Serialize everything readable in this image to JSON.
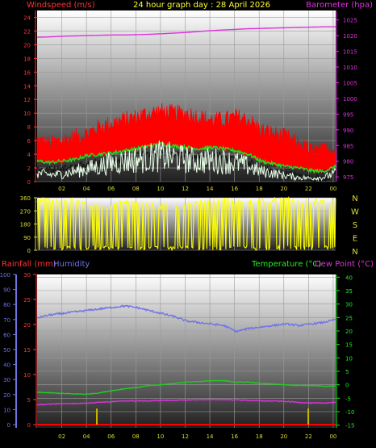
{
  "header": {
    "left_title": "Windspeed (m/s)",
    "center_title": "24 hour graph day : 28 April 2026",
    "right_title": "Barometer (hpa)"
  },
  "panel2": {
    "compass": [
      "N",
      "W",
      "S",
      "E",
      "N"
    ]
  },
  "panel3": {
    "rain_title": "Rainfall (mm)",
    "humidity_title": "Humidity",
    "temp_title": "Temperature (°C)",
    "dew_title": "Dew Point (°C)"
  },
  "colors": {
    "wind_avg": "#ff0000",
    "wind_gust_green": "#22dd22",
    "wind_white": "#e8ffe8",
    "barometer": "#dd33dd",
    "direction": "#ffff00",
    "humidity": "#6e73e6",
    "temperature": "#22cc22",
    "dewpoint": "#dd33dd",
    "rain": "#ff0000",
    "rain_bar": "#c8b400",
    "axis_left": "#ff3333",
    "axis_right_baro": "#dd33dd",
    "axis_temp": "#22ee22",
    "axis_hum": "#6e73e6"
  },
  "chart_data": [
    {
      "type": "line",
      "name": "windspeed-barometer",
      "x_ticks": [
        "02",
        "04",
        "06",
        "08",
        "10",
        "12",
        "14",
        "16",
        "18",
        "20",
        "22",
        "00"
      ],
      "y_left_ticks": [
        "0",
        "2",
        "4",
        "6",
        "8",
        "10",
        "12",
        "14",
        "16",
        "18",
        "20",
        "22",
        "24"
      ],
      "y_left_range": [
        0,
        25
      ],
      "y_right_ticks": [
        "975",
        "980",
        "985",
        "990",
        "995",
        "1000",
        "1005",
        "1010",
        "1015",
        "1020",
        "1025"
      ],
      "y_right_range": [
        973.5,
        1028
      ],
      "series": [
        {
          "key": "barometer",
          "axis": "right",
          "values": [
            1019.5,
            1019.6,
            1019.8,
            1019.9,
            1020.0,
            1020.1,
            1020.2,
            1020.2,
            1020.3,
            1020.4,
            1020.6,
            1020.8,
            1021.0,
            1021.3,
            1021.6,
            1021.8,
            1022.0,
            1022.2,
            1022.3,
            1022.4,
            1022.5,
            1022.6,
            1022.7,
            1022.8,
            1022.8
          ]
        },
        {
          "key": "gust_high",
          "axis": "left",
          "values": [
            5.5,
            5.0,
            5.5,
            6.0,
            6.5,
            7.5,
            8.0,
            8.5,
            9.0,
            9.5,
            9.8,
            9.5,
            9.5,
            9.0,
            8.5,
            8.5,
            9.0,
            8.5,
            7.0,
            6.5,
            6.0,
            5.0,
            4.0,
            4.0,
            4.5
          ]
        },
        {
          "key": "gust_green",
          "axis": "left",
          "values": [
            3.0,
            2.8,
            3.0,
            3.2,
            3.8,
            4.0,
            4.2,
            4.5,
            4.8,
            5.2,
            5.5,
            5.2,
            5.0,
            4.8,
            5.0,
            4.8,
            4.5,
            4.0,
            3.0,
            2.6,
            2.2,
            2.0,
            1.6,
            1.5,
            2.2
          ]
        },
        {
          "key": "wind_avg",
          "axis": "left",
          "values": [
            1.0,
            0.8,
            0.9,
            1.2,
            1.5,
            1.8,
            2.2,
            2.4,
            2.6,
            2.8,
            3.0,
            2.8,
            2.6,
            2.4,
            2.5,
            2.4,
            2.2,
            1.8,
            1.2,
            1.0,
            0.7,
            0.5,
            0.4,
            0.5,
            1.0
          ]
        }
      ]
    },
    {
      "type": "line",
      "name": "wind-direction",
      "x_ticks": [
        "02",
        "04",
        "06",
        "08",
        "10",
        "12",
        "14",
        "16",
        "18",
        "20",
        "22",
        "00"
      ],
      "y_ticks": [
        "0",
        "90",
        "180",
        "270",
        "360"
      ],
      "y_range": [
        0,
        360
      ],
      "series": [
        {
          "key": "direction",
          "values": [
            340,
            345,
            330,
            350,
            320,
            300,
            310,
            330,
            340,
            320,
            300,
            290,
            300,
            320,
            330,
            340,
            335,
            330,
            340,
            345,
            350,
            340,
            335,
            330,
            340
          ]
        }
      ]
    },
    {
      "type": "line",
      "name": "temperature-humidity-rain",
      "x_ticks": [
        "02",
        "04",
        "06",
        "08",
        "10",
        "12",
        "14",
        "16",
        "18",
        "20",
        "22",
        "00"
      ],
      "y_hum_ticks": [
        "0",
        "10",
        "20",
        "30",
        "40",
        "50",
        "60",
        "70",
        "80",
        "90",
        "100"
      ],
      "y_hum_range": [
        0,
        100
      ],
      "y_rain_ticks": [
        "0",
        "5",
        "10",
        "15",
        "20",
        "25",
        "30"
      ],
      "y_rain_range": [
        0,
        30
      ],
      "y_temp_ticks": [
        "-15",
        "-10",
        "-5",
        "0",
        "5",
        "10",
        "15",
        "20",
        "25",
        "30",
        "35",
        "40"
      ],
      "y_temp_range": [
        -16,
        41
      ],
      "series": [
        {
          "key": "humidity",
          "axis": "hum",
          "values": [
            71,
            73,
            74,
            75,
            76,
            77,
            78,
            79,
            78,
            76,
            74,
            72,
            69,
            68,
            67,
            66,
            62,
            64,
            65,
            66,
            67,
            66,
            67,
            68,
            70
          ]
        },
        {
          "key": "temperature",
          "axis": "temp",
          "values": [
            -2.8,
            -3.0,
            -3.2,
            -3.4,
            -3.5,
            -3.0,
            -2.2,
            -1.5,
            -1.0,
            -0.3,
            0.0,
            0.5,
            1.0,
            1.2,
            1.5,
            1.5,
            1.0,
            1.0,
            0.5,
            0.3,
            0.0,
            -0.2,
            -0.3,
            -0.5,
            -0.5
          ]
        },
        {
          "key": "dewpoint",
          "axis": "temp",
          "values": [
            -7.5,
            -7.2,
            -7.0,
            -7.0,
            -6.8,
            -6.5,
            -6.3,
            -6.0,
            -6.0,
            -6.0,
            -5.8,
            -5.8,
            -5.7,
            -5.5,
            -5.5,
            -5.5,
            -5.6,
            -5.8,
            -6.0,
            -6.0,
            -6.2,
            -6.5,
            -6.8,
            -6.8,
            -6.5
          ]
        },
        {
          "key": "rainfall",
          "axis": "rain",
          "values": [
            0,
            0,
            0,
            0,
            0,
            0,
            0,
            0,
            0,
            0,
            0,
            0,
            0,
            0,
            0,
            0,
            0,
            0,
            0,
            0,
            0,
            0,
            0,
            0,
            0
          ]
        }
      ],
      "rain_bars": [
        {
          "hour_index": 4.8,
          "value": 3.2
        },
        {
          "hour_index": 21.8,
          "value": 3.2
        }
      ]
    }
  ]
}
